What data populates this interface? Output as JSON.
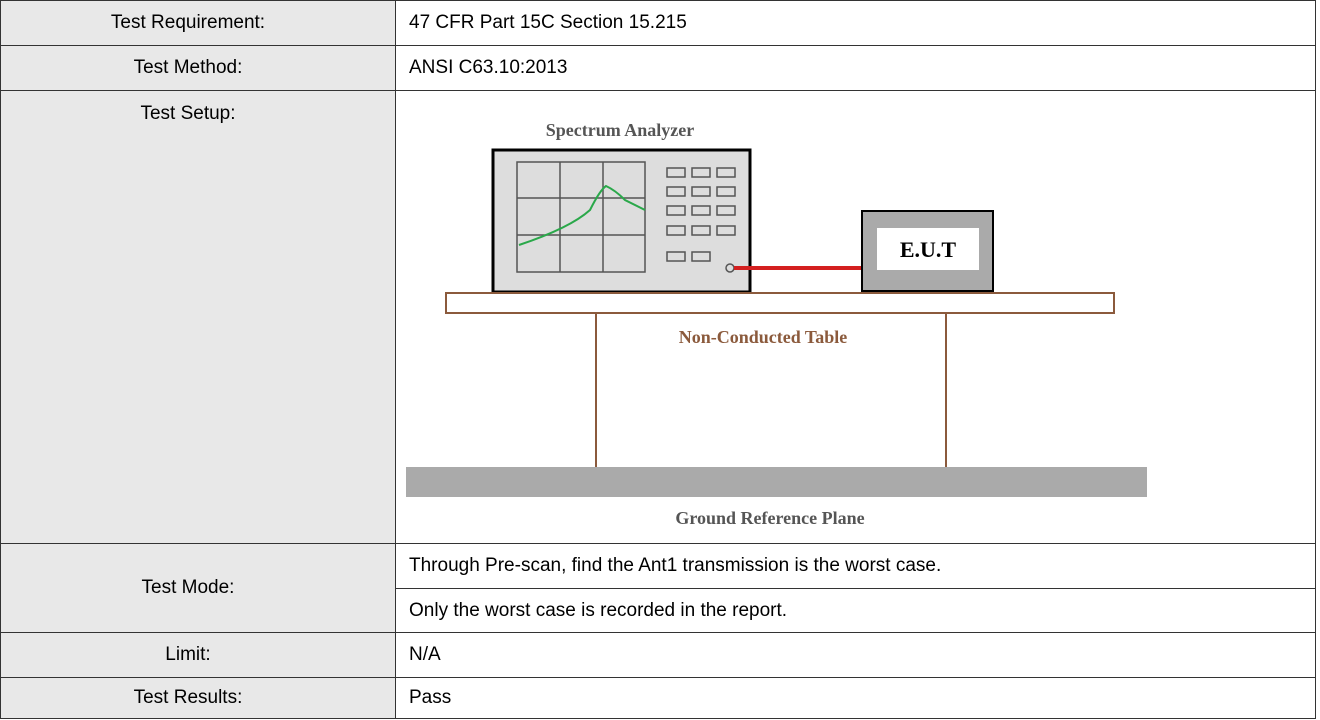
{
  "table": {
    "rows": [
      [
        "Test Requirement:",
        "47 CFR Part 15C Section 15.215"
      ],
      [
        "Test Method:",
        "ANSI C63.10:2013"
      ],
      [
        "Test Setup:",
        ""
      ],
      [
        "Test Mode:",
        [
          "Through Pre-scan, find the Ant1 transmission is the worst case.",
          "Only the worst case is recorded in the report."
        ]
      ],
      [
        "Limit:",
        "N/A"
      ],
      [
        "Test Results:",
        "Pass"
      ]
    ]
  },
  "diagram": {
    "analyzer_label": "Spectrum Analyzer",
    "eut_label": "E.U.T",
    "table_label": "Non-Conducted Table",
    "ground_label": "Ground Reference Plane"
  }
}
